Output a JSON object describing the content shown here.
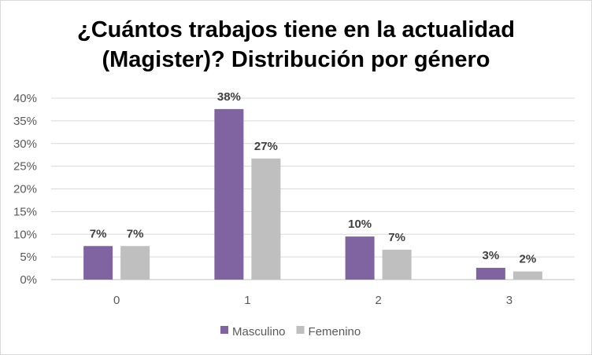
{
  "chart_data": {
    "type": "bar",
    "title_lines": [
      "¿Cuántos trabajos tiene en la actualidad",
      "(Magister)? Distribución por género"
    ],
    "categories": [
      "0",
      "1",
      "2",
      "3"
    ],
    "series": [
      {
        "name": "Masculino",
        "color": "#8064a2",
        "values": [
          7.4,
          37.6,
          9.5,
          2.6
        ],
        "labels": [
          "7%",
          "38%",
          "10%",
          "3%"
        ]
      },
      {
        "name": "Femenino",
        "color": "#bfbfbf",
        "values": [
          7.4,
          26.7,
          6.6,
          1.8
        ],
        "labels": [
          "7%",
          "27%",
          "7%",
          "2%"
        ]
      }
    ],
    "ylim": [
      0,
      40
    ],
    "yticks": [
      0,
      5,
      10,
      15,
      20,
      25,
      30,
      35,
      40
    ],
    "ytick_labels": [
      "0%",
      "5%",
      "10%",
      "15%",
      "20%",
      "25%",
      "30%",
      "35%",
      "40%"
    ],
    "grid": true,
    "legend_position": "bottom"
  }
}
